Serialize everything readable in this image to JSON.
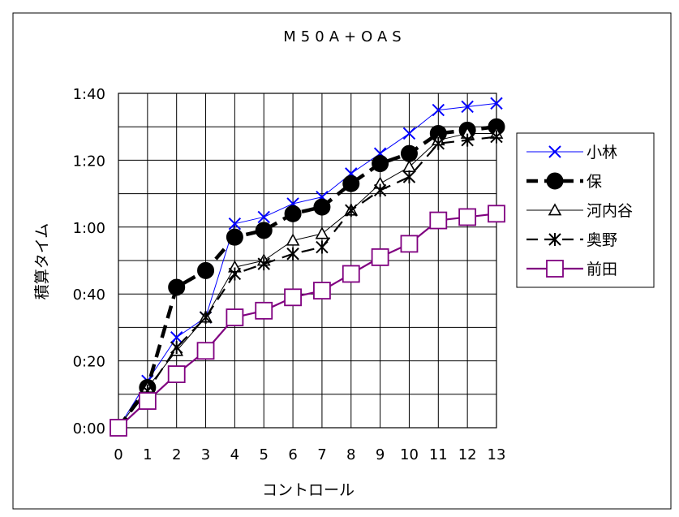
{
  "chart_data": {
    "type": "line",
    "title": "M50A+OAS",
    "xlabel": "コントロール",
    "ylabel": "積算タイム",
    "categories": [
      "0",
      "1",
      "2",
      "3",
      "4",
      "5",
      "6",
      "7",
      "8",
      "9",
      "10",
      "11",
      "12",
      "13"
    ],
    "yticks": [
      "0:00",
      "0:20",
      "0:40",
      "1:00",
      "1:20",
      "1:40"
    ],
    "ylim_minutes": [
      0,
      100
    ],
    "grid": true,
    "legend_position": "right",
    "series": [
      {
        "name": "小林",
        "color": "#0000ff",
        "marker": "x",
        "dash": "solid",
        "width": "thin",
        "values": [
          0,
          14,
          27,
          33,
          61,
          63,
          67,
          69,
          76,
          82,
          88,
          95,
          96,
          97
        ]
      },
      {
        "name": "保",
        "color": "#000000",
        "marker": "filled-circle",
        "dash": "dashed",
        "width": "thick",
        "values": [
          0,
          12,
          42,
          47,
          57,
          59,
          64,
          66,
          73,
          79,
          82,
          88,
          89,
          90
        ]
      },
      {
        "name": "河内谷",
        "color": "#000000",
        "marker": "triangle",
        "dash": "solid",
        "width": "thin",
        "values": [
          0,
          12,
          23,
          33,
          48,
          50,
          56,
          58,
          65,
          73,
          78,
          86,
          88,
          88
        ]
      },
      {
        "name": "奥野",
        "color": "#000000",
        "marker": "asterisk",
        "dash": "dashed",
        "width": "medium",
        "values": [
          0,
          11,
          24,
          33,
          46,
          49,
          52,
          54,
          65,
          71,
          75,
          85,
          86,
          87
        ]
      },
      {
        "name": "前田",
        "color": "#800080",
        "marker": "open-square",
        "dash": "solid",
        "width": "medium",
        "values": [
          0,
          8,
          16,
          23,
          33,
          35,
          39,
          41,
          46,
          51,
          55,
          62,
          63,
          64
        ]
      }
    ]
  }
}
